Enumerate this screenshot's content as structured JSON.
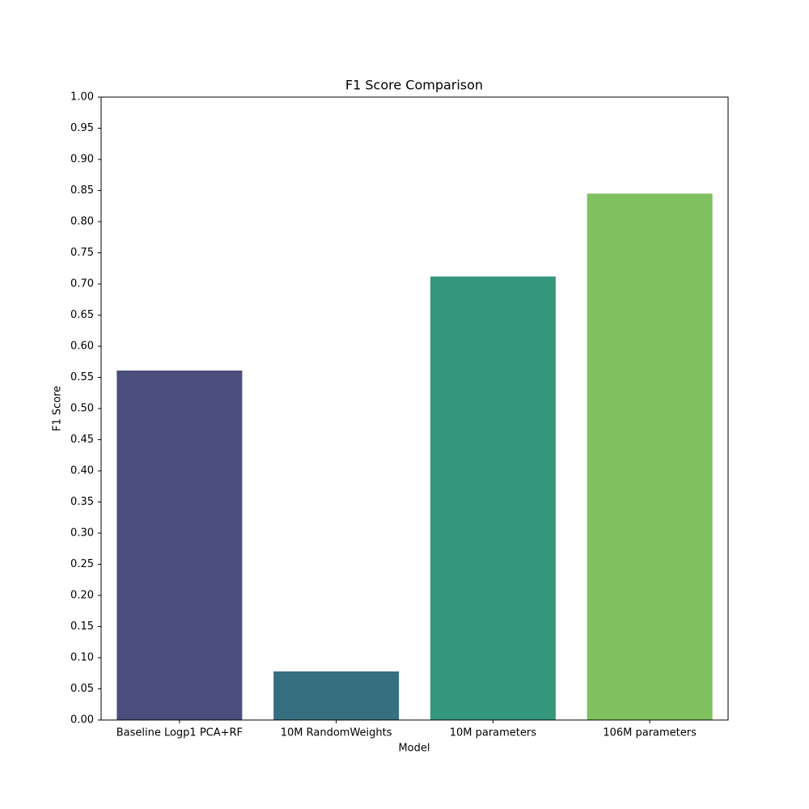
{
  "chart_data": {
    "type": "bar",
    "title": "F1 Score Comparison",
    "x_label": "Model",
    "y_label": "F1 Score",
    "categories": [
      "Baseline Logp1 PCA+RF",
      "10M RandomWeights",
      "10M parameters",
      "106M parameters"
    ],
    "values": [
      0.561,
      0.078,
      0.712,
      0.845
    ],
    "colors": [
      "#4a4e7c",
      "#366f80",
      "#35987c",
      "#80c15f"
    ],
    "ylim": [
      0,
      1.0
    ],
    "yticks": [
      {
        "value": 0,
        "label": "0.00"
      },
      {
        "value": 0.05,
        "label": "0.05"
      },
      {
        "value": 0.1,
        "label": "0.10"
      },
      {
        "value": 0.15,
        "label": "0.15"
      },
      {
        "value": 0.2,
        "label": "0.20"
      },
      {
        "value": 0.25,
        "label": "0.25"
      },
      {
        "value": 0.3,
        "label": "0.30"
      },
      {
        "value": 0.35,
        "label": "0.35"
      },
      {
        "value": 0.4,
        "label": "0.40"
      },
      {
        "value": 0.45,
        "label": "0.45"
      },
      {
        "value": 0.5,
        "label": "0.50"
      },
      {
        "value": 0.55,
        "label": "0.55"
      },
      {
        "value": 0.6,
        "label": "0.60"
      },
      {
        "value": 0.65,
        "label": "0.65"
      },
      {
        "value": 0.7,
        "label": "0.70"
      },
      {
        "value": 0.75,
        "label": "0.75"
      },
      {
        "value": 0.8,
        "label": "0.80"
      },
      {
        "value": 0.85,
        "label": "0.85"
      },
      {
        "value": 0.9,
        "label": "0.90"
      },
      {
        "value": 0.95,
        "label": "0.95"
      },
      {
        "value": 1.0,
        "label": "1.00"
      }
    ],
    "grid": false
  }
}
